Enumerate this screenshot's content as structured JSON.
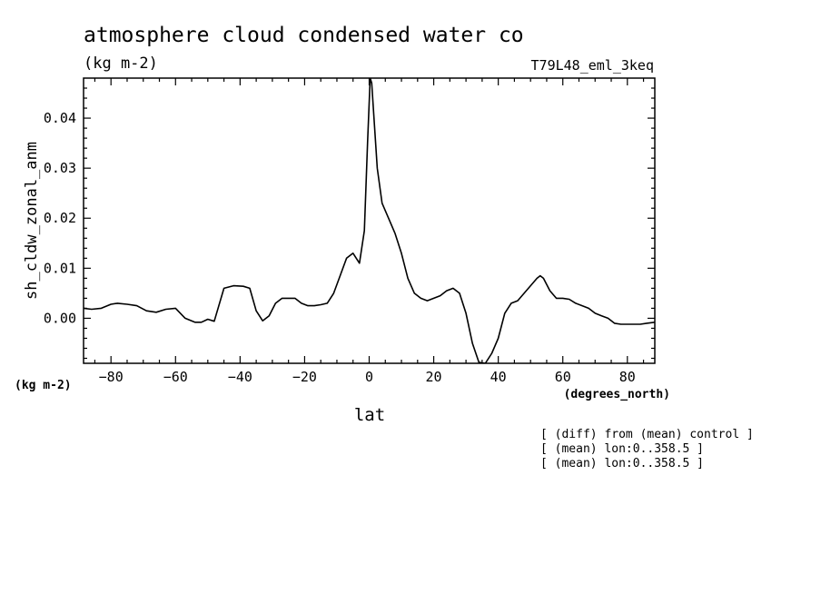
{
  "chart_data": {
    "type": "line",
    "title": "atmosphere cloud condensed water co",
    "units": "(kg m-2)",
    "run_label": "T79L48_eml_3keq",
    "ylabel": "sh_cldw_zonal_anm",
    "y_units_label": "(kg m-2)",
    "xlabel": "lat",
    "x_units_label": "(degrees_north)",
    "notes": [
      "[ (diff) from (mean) control ]",
      "[ (mean) lon:0..358.5 ]",
      "[ (mean) lon:0..358.5 ]"
    ],
    "xlim": [
      -88.5,
      88.5
    ],
    "ylim": [
      -0.009,
      0.048
    ],
    "x_ticks": [
      -80,
      -60,
      -40,
      -20,
      0,
      20,
      40,
      60,
      80
    ],
    "y_ticks": [
      0.0,
      0.01,
      0.02,
      0.03,
      0.04
    ],
    "x_tick_labels": [
      "−80",
      "−60",
      "−40",
      "−20",
      "0",
      "20",
      "40",
      "60",
      "80"
    ],
    "y_tick_labels": [
      "0.00",
      "0.01",
      "0.02",
      "0.03",
      "0.04"
    ],
    "series": [
      {
        "x": [
          -88.5,
          -86,
          -83,
          -80,
          -78,
          -75,
          -72,
          -69,
          -66,
          -63,
          -60,
          -57,
          -54,
          -52,
          -50,
          -48,
          -45,
          -42,
          -39,
          -37,
          -35,
          -33,
          -31,
          -29,
          -27,
          -25,
          -23,
          -21,
          -19,
          -17,
          -15,
          -13,
          -11,
          -9,
          -7,
          -5,
          -3,
          -1.5,
          -0.5,
          0.3,
          0.8,
          1.5,
          2.5,
          4,
          6,
          8,
          10,
          12,
          14,
          16,
          18,
          20,
          22,
          24,
          26,
          28,
          30,
          32,
          34,
          36,
          38,
          40,
          42,
          44,
          46,
          48,
          50,
          52,
          53,
          54,
          56,
          58,
          60,
          62,
          64,
          66,
          68,
          70,
          72,
          74,
          76,
          78,
          80,
          82,
          84,
          86,
          88.5
        ],
        "y": [
          0.002,
          0.0018,
          0.002,
          0.0028,
          0.003,
          0.0028,
          0.0025,
          0.0015,
          0.0012,
          0.0018,
          0.002,
          0.0,
          -0.0008,
          -0.0008,
          -0.0002,
          -0.0006,
          0.006,
          0.0065,
          0.0064,
          0.006,
          0.0015,
          -0.0005,
          0.0005,
          0.003,
          0.004,
          0.004,
          0.004,
          0.003,
          0.0025,
          0.0025,
          0.0027,
          0.003,
          0.005,
          0.0085,
          0.012,
          0.013,
          0.011,
          0.0175,
          0.035,
          0.048,
          0.047,
          0.04,
          0.03,
          0.023,
          0.02,
          0.017,
          0.013,
          0.008,
          0.005,
          0.004,
          0.0035,
          0.004,
          0.0045,
          0.0055,
          0.006,
          0.005,
          0.001,
          -0.005,
          -0.0088,
          -0.009,
          -0.007,
          -0.004,
          0.001,
          0.003,
          0.0035,
          0.005,
          0.0065,
          0.008,
          0.0085,
          0.008,
          0.0055,
          0.004,
          0.004,
          0.0038,
          0.003,
          0.0025,
          0.002,
          0.001,
          0.0005,
          0.0,
          -0.001,
          -0.0012,
          -0.0012,
          -0.0012,
          -0.0012,
          -0.001,
          -0.0008
        ]
      }
    ],
    "grid": false,
    "legend": "none",
    "line_color": "#000000"
  }
}
